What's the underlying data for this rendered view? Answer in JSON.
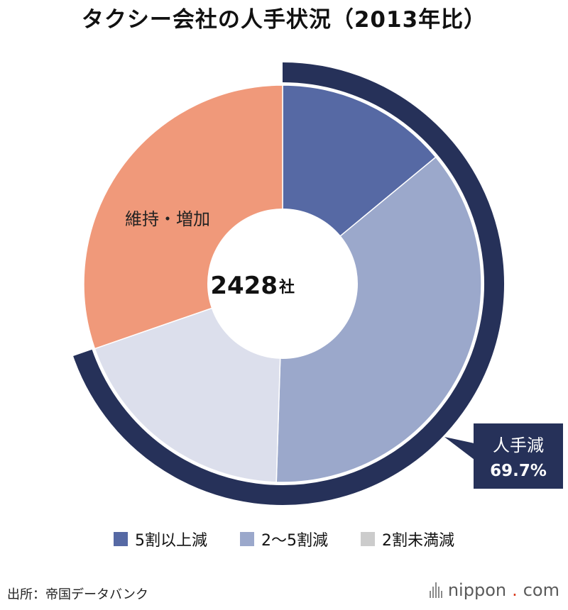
{
  "title": "タクシー会社の人手状況（2013年比）",
  "chart_data": {
    "type": "pie",
    "center_label_number": "2428",
    "center_label_unit": "社",
    "slices": [
      {
        "name": "5割以上減",
        "value": 14.0,
        "color": "#5669a4"
      },
      {
        "name": "2〜5割減",
        "value": 36.5,
        "color": "#9ba8cb"
      },
      {
        "name": "2割未満減",
        "value": 19.2,
        "color": "#dcdfec"
      },
      {
        "name": "維持・増加",
        "value": 30.3,
        "color": "#f0997a",
        "label": "維持・増加"
      }
    ],
    "annotation": {
      "label": "人手減",
      "value": "69.7%",
      "color": "#263159"
    }
  },
  "legend": [
    {
      "label": "5割以上減",
      "color": "#5669a4"
    },
    {
      "label": "2〜5割減",
      "color": "#9ba8cb"
    },
    {
      "label": "2割未満減",
      "color": "#cccccc"
    }
  ],
  "source": "出所：帝国データバンク",
  "brand": {
    "name": "nippon",
    "dot": ".",
    "tld": "com"
  }
}
